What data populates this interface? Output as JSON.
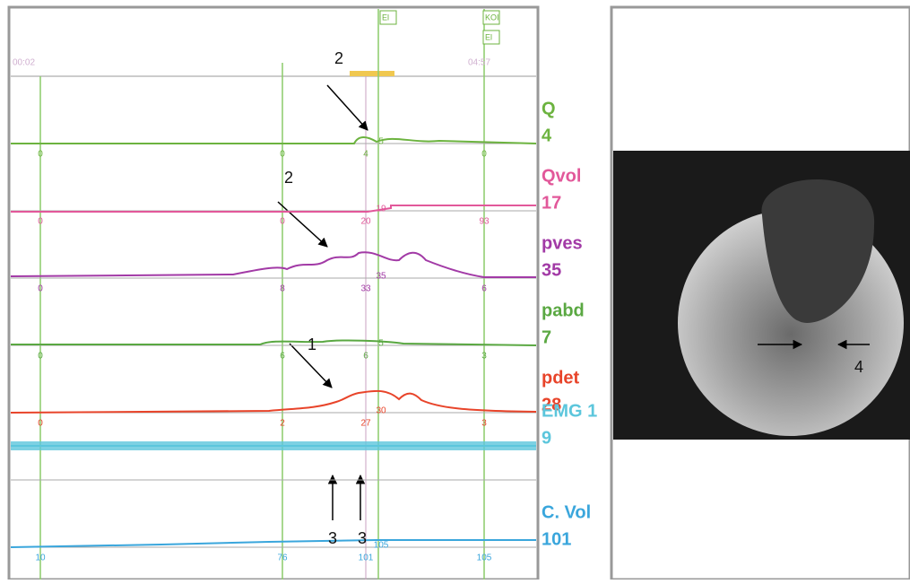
{
  "header": {
    "time_start": "00:02",
    "time_end": "04:57",
    "markers": [
      "El",
      "KOI",
      "El"
    ]
  },
  "channels": [
    {
      "name": "Q",
      "value": "4",
      "color": "#6cb33f",
      "labels": [
        "0",
        "0",
        "4",
        "0"
      ],
      "cursor": "5"
    },
    {
      "name": "Qvol",
      "value": "17",
      "color": "#e2589a",
      "labels": [
        "0",
        "0",
        "20",
        "93"
      ],
      "cursor": "19"
    },
    {
      "name": "pves",
      "value": "35",
      "color": "#a23aa6",
      "labels": [
        "0",
        "8",
        "33",
        "6"
      ],
      "cursor": "35"
    },
    {
      "name": "pabd",
      "value": "7",
      "color": "#5aa842",
      "labels": [
        "0",
        "6",
        "6",
        "3"
      ],
      "cursor": "5"
    },
    {
      "name": "pdet",
      "value": "28",
      "color": "#e8442a",
      "labels": [
        "0",
        "2",
        "27",
        "3"
      ],
      "cursor": "30"
    },
    {
      "name": "EMG 1",
      "value": "9",
      "color": "#5cc6dc"
    },
    {
      "name": "C. Vol",
      "value": "101",
      "color": "#3aa6dc",
      "labels": [
        "10",
        "76",
        "101",
        "105"
      ],
      "cursor": "105"
    }
  ],
  "annotations": [
    "2",
    "2",
    "1",
    "3",
    "3",
    "4"
  ]
}
